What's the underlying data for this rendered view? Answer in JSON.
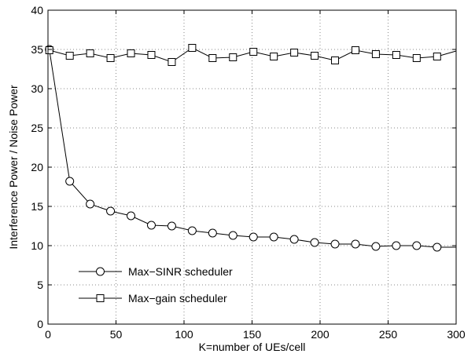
{
  "chart_data": {
    "type": "line",
    "title": "",
    "xlabel": "K=number of UEs/cell",
    "ylabel": "Interference Power / Noise Power",
    "xlim": [
      0,
      300
    ],
    "ylim": [
      0,
      40
    ],
    "xticks": [
      0,
      50,
      100,
      150,
      200,
      250,
      300
    ],
    "yticks": [
      0,
      5,
      10,
      15,
      20,
      25,
      30,
      35,
      40
    ],
    "grid": true,
    "legend_position": "bottom-left",
    "series": [
      {
        "name": "Max−SINR scheduler",
        "marker": "circle",
        "color": "#000000",
        "x": [
          1,
          16,
          31,
          46,
          61,
          76,
          91,
          106,
          121,
          136,
          151,
          166,
          181,
          196,
          211,
          226,
          241,
          256,
          271,
          286,
          300
        ],
        "y": [
          35.0,
          18.2,
          15.3,
          14.4,
          13.8,
          12.6,
          12.5,
          11.9,
          11.6,
          11.3,
          11.1,
          11.1,
          10.8,
          10.4,
          10.2,
          10.2,
          9.9,
          10.0,
          10.0,
          9.8,
          9.8
        ]
      },
      {
        "name": "Max−gain scheduler",
        "marker": "square",
        "color": "#000000",
        "x": [
          1,
          16,
          31,
          46,
          61,
          76,
          91,
          106,
          121,
          136,
          151,
          166,
          181,
          196,
          211,
          226,
          241,
          256,
          271,
          286,
          300
        ],
        "y": [
          34.9,
          34.2,
          34.5,
          33.9,
          34.5,
          34.3,
          33.4,
          35.2,
          33.9,
          34.0,
          34.7,
          34.1,
          34.6,
          34.2,
          33.6,
          34.9,
          34.4,
          34.3,
          33.9,
          34.1,
          34.8
        ]
      }
    ]
  }
}
